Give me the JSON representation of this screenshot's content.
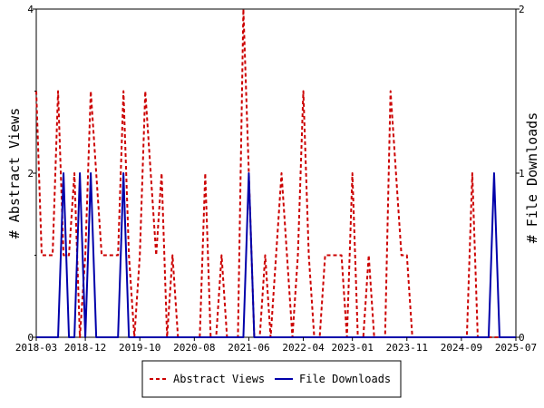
{
  "chart_data": {
    "type": "line",
    "x_unit": "month",
    "x_start": "2018-03",
    "x_end": "2025-07",
    "x_ticks": [
      "2018-03",
      "2018-12",
      "2019-10",
      "2020-08",
      "2021-06",
      "2022-04",
      "2023-01",
      "2023-11",
      "2024-09",
      "2025-07"
    ],
    "y_left": {
      "label": "# Abstract Views",
      "range": [
        0,
        4
      ],
      "ticks": [
        "0",
        "2",
        "4"
      ]
    },
    "y_right": {
      "label": "# File Downloads",
      "range": [
        0,
        2
      ],
      "ticks": [
        "0",
        "1",
        "2"
      ]
    },
    "grid": false,
    "legend_position": "bottom",
    "series": [
      {
        "name": "Abstract Views",
        "axis": "left",
        "color": "#cc0000",
        "dash": true,
        "points": [
          [
            "2018-03",
            3
          ],
          [
            "2018-04",
            1
          ],
          [
            "2018-05",
            1
          ],
          [
            "2018-06",
            1
          ],
          [
            "2018-07",
            3
          ],
          [
            "2018-08",
            1
          ],
          [
            "2018-09",
            1
          ],
          [
            "2018-10",
            2
          ],
          [
            "2018-11",
            0
          ],
          [
            "2018-12",
            1
          ],
          [
            "2019-01",
            3
          ],
          [
            "2019-02",
            2
          ],
          [
            "2019-03",
            1
          ],
          [
            "2019-04",
            1
          ],
          [
            "2019-05",
            1
          ],
          [
            "2019-06",
            1
          ],
          [
            "2019-07",
            3
          ],
          [
            "2019-08",
            1
          ],
          [
            "2019-09",
            0
          ],
          [
            "2019-10",
            1
          ],
          [
            "2019-11",
            3
          ],
          [
            "2019-12",
            2
          ],
          [
            "2020-01",
            1
          ],
          [
            "2020-02",
            2
          ],
          [
            "2020-03",
            0
          ],
          [
            "2020-04",
            1
          ],
          [
            "2020-05",
            0
          ],
          [
            "2020-06",
            0
          ],
          [
            "2020-07",
            0
          ],
          [
            "2020-08",
            0
          ],
          [
            "2020-09",
            0
          ],
          [
            "2020-10",
            2
          ],
          [
            "2020-11",
            0
          ],
          [
            "2020-12",
            0
          ],
          [
            "2021-01",
            1
          ],
          [
            "2021-02",
            0
          ],
          [
            "2021-03",
            0
          ],
          [
            "2021-04",
            0
          ],
          [
            "2021-05",
            4
          ],
          [
            "2021-06",
            2
          ],
          [
            "2021-07",
            0
          ],
          [
            "2021-08",
            0
          ],
          [
            "2021-09",
            1
          ],
          [
            "2021-10",
            0
          ],
          [
            "2021-11",
            1
          ],
          [
            "2021-12",
            2
          ],
          [
            "2022-01",
            1
          ],
          [
            "2022-02",
            0
          ],
          [
            "2022-03",
            1
          ],
          [
            "2022-04",
            3
          ],
          [
            "2022-05",
            1
          ],
          [
            "2022-06",
            0
          ],
          [
            "2022-07",
            0
          ],
          [
            "2022-08",
            1
          ],
          [
            "2022-09",
            1
          ],
          [
            "2022-10",
            1
          ],
          [
            "2022-11",
            1
          ],
          [
            "2022-12",
            0
          ],
          [
            "2023-01",
            2
          ],
          [
            "2023-02",
            0
          ],
          [
            "2023-03",
            0
          ],
          [
            "2023-04",
            1
          ],
          [
            "2023-05",
            0
          ],
          [
            "2023-06",
            0
          ],
          [
            "2023-07",
            0
          ],
          [
            "2023-08",
            3
          ],
          [
            "2023-09",
            2
          ],
          [
            "2023-10",
            1
          ],
          [
            "2023-11",
            1
          ],
          [
            "2023-12",
            0
          ],
          [
            "2024-01",
            0
          ],
          [
            "2024-02",
            0
          ],
          [
            "2024-03",
            0
          ],
          [
            "2024-04",
            0
          ],
          [
            "2024-05",
            0
          ],
          [
            "2024-06",
            0
          ],
          [
            "2024-07",
            0
          ],
          [
            "2024-08",
            0
          ],
          [
            "2024-09",
            0
          ],
          [
            "2024-10",
            0
          ],
          [
            "2024-11",
            2
          ],
          [
            "2024-12",
            0
          ],
          [
            "2025-01",
            0
          ],
          [
            "2025-02",
            0
          ],
          [
            "2025-03",
            0
          ],
          [
            "2025-04",
            0
          ],
          [
            "2025-05",
            0
          ],
          [
            "2025-06",
            0
          ],
          [
            "2025-07",
            0
          ]
        ]
      },
      {
        "name": "File Downloads",
        "axis": "right",
        "color": "#0000aa",
        "dash": false,
        "points": [
          [
            "2018-03",
            0
          ],
          [
            "2018-04",
            0
          ],
          [
            "2018-05",
            0
          ],
          [
            "2018-06",
            0
          ],
          [
            "2018-07",
            0
          ],
          [
            "2018-08",
            1
          ],
          [
            "2018-09",
            0
          ],
          [
            "2018-10",
            0
          ],
          [
            "2018-11",
            1
          ],
          [
            "2018-12",
            0
          ],
          [
            "2019-01",
            1
          ],
          [
            "2019-02",
            0
          ],
          [
            "2019-03",
            0
          ],
          [
            "2019-04",
            0
          ],
          [
            "2019-05",
            0
          ],
          [
            "2019-06",
            0
          ],
          [
            "2019-07",
            1
          ],
          [
            "2019-08",
            0
          ],
          [
            "2019-09",
            0
          ],
          [
            "2019-10",
            0
          ],
          [
            "2019-11",
            0
          ],
          [
            "2019-12",
            0
          ],
          [
            "2020-01",
            0
          ],
          [
            "2020-02",
            0
          ],
          [
            "2020-03",
            0
          ],
          [
            "2020-04",
            0
          ],
          [
            "2020-05",
            0
          ],
          [
            "2020-06",
            0
          ],
          [
            "2020-07",
            0
          ],
          [
            "2020-08",
            0
          ],
          [
            "2020-09",
            0
          ],
          [
            "2020-10",
            0
          ],
          [
            "2020-11",
            0
          ],
          [
            "2020-12",
            0
          ],
          [
            "2021-01",
            0
          ],
          [
            "2021-02",
            0
          ],
          [
            "2021-03",
            0
          ],
          [
            "2021-04",
            0
          ],
          [
            "2021-05",
            0
          ],
          [
            "2021-06",
            1
          ],
          [
            "2021-07",
            0
          ],
          [
            "2021-08",
            0
          ],
          [
            "2021-09",
            0
          ],
          [
            "2021-10",
            0
          ],
          [
            "2021-11",
            0
          ],
          [
            "2021-12",
            0
          ],
          [
            "2022-01",
            0
          ],
          [
            "2022-02",
            0
          ],
          [
            "2022-03",
            0
          ],
          [
            "2022-04",
            0
          ],
          [
            "2022-05",
            0
          ],
          [
            "2022-06",
            0
          ],
          [
            "2022-07",
            0
          ],
          [
            "2022-08",
            0
          ],
          [
            "2022-09",
            0
          ],
          [
            "2022-10",
            0
          ],
          [
            "2022-11",
            0
          ],
          [
            "2022-12",
            0
          ],
          [
            "2023-01",
            0
          ],
          [
            "2023-02",
            0
          ],
          [
            "2023-03",
            0
          ],
          [
            "2023-04",
            0
          ],
          [
            "2023-05",
            0
          ],
          [
            "2023-06",
            0
          ],
          [
            "2023-07",
            0
          ],
          [
            "2023-08",
            0
          ],
          [
            "2023-09",
            0
          ],
          [
            "2023-10",
            0
          ],
          [
            "2023-11",
            0
          ],
          [
            "2023-12",
            0
          ],
          [
            "2024-01",
            0
          ],
          [
            "2024-02",
            0
          ],
          [
            "2024-03",
            0
          ],
          [
            "2024-04",
            0
          ],
          [
            "2024-05",
            0
          ],
          [
            "2024-06",
            0
          ],
          [
            "2024-07",
            0
          ],
          [
            "2024-08",
            0
          ],
          [
            "2024-09",
            0
          ],
          [
            "2024-10",
            0
          ],
          [
            "2024-11",
            0
          ],
          [
            "2024-12",
            0
          ],
          [
            "2025-01",
            0
          ],
          [
            "2025-02",
            0
          ],
          [
            "2025-03",
            1
          ],
          [
            "2025-04",
            0
          ],
          [
            "2025-05",
            0
          ],
          [
            "2025-06",
            0
          ],
          [
            "2025-07",
            0
          ]
        ]
      }
    ]
  }
}
